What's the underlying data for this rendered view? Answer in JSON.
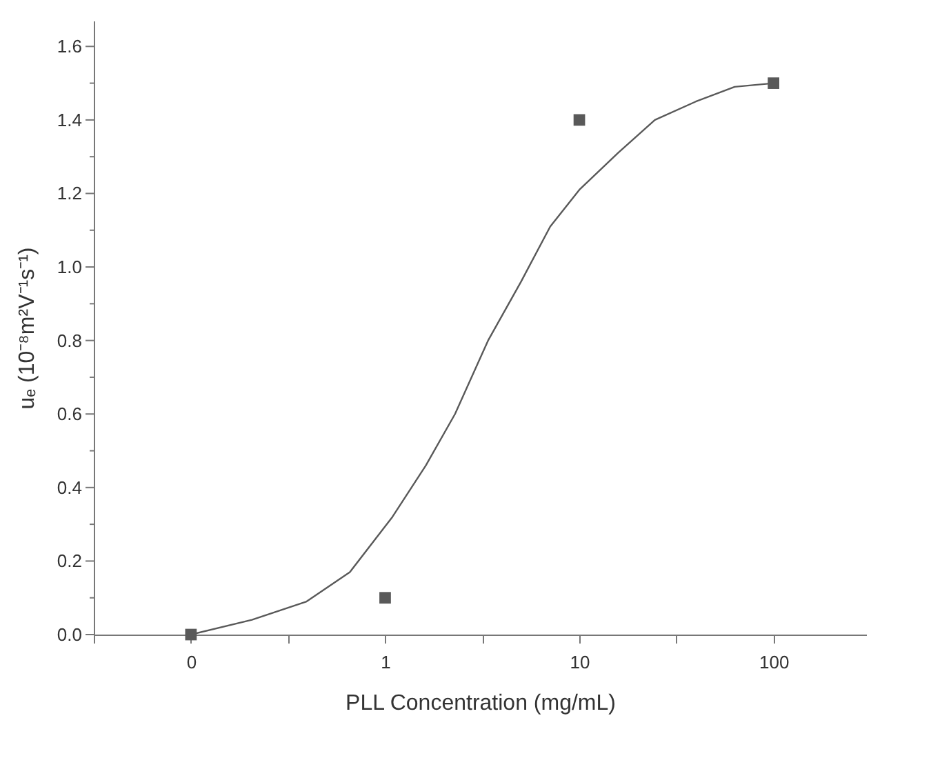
{
  "chart_data": {
    "type": "scatter",
    "xlabel": "PLL Concentration (mg/mL)",
    "ylabel": "uₑ (10⁻⁸m²V⁻¹s⁻¹)",
    "log": "x",
    "grid": false,
    "xlim": [
      0.0316,
      300
    ],
    "ylim": [
      0,
      1.67
    ],
    "xticks": [
      {
        "value": 0.0316,
        "label": null
      },
      {
        "value": 0.1,
        "label": "0"
      },
      {
        "value": 0.316,
        "label": null
      },
      1,
      {
        "value": 3.16,
        "label": null
      },
      10,
      {
        "value": 31.6,
        "label": null
      },
      100
    ],
    "yticks": [
      {
        "value": 0,
        "label": "0.0"
      },
      {
        "value": 0.1,
        "label": null
      },
      {
        "value": 0.2,
        "label": "0.2"
      },
      {
        "value": 0.3,
        "label": null
      },
      {
        "value": 0.4,
        "label": "0.4"
      },
      {
        "value": 0.5,
        "label": null
      },
      {
        "value": 0.6,
        "label": "0.6"
      },
      {
        "value": 0.7,
        "label": null
      },
      {
        "value": 0.8,
        "label": "0.8"
      },
      {
        "value": 0.9,
        "label": null
      },
      {
        "value": 1.0,
        "label": "1.0"
      },
      {
        "value": 1.1,
        "label": null
      },
      {
        "value": 1.2,
        "label": "1.2"
      },
      {
        "value": 1.3,
        "label": null
      },
      {
        "value": 1.4,
        "label": "1.4"
      },
      {
        "value": 1.5,
        "label": null
      },
      {
        "value": 1.6,
        "label": "1.6"
      }
    ],
    "series": [
      {
        "type": "line",
        "color": "#595959",
        "marker": "none",
        "line_style": "solid",
        "x": [
          0.1,
          0.206,
          0.394,
          0.658,
          1.09,
          1.62,
          2.29,
          3.39,
          5.01,
          7.08,
          10,
          15.8,
          24.5,
          39.8,
          63.1,
          100
        ],
        "values": [
          0,
          0.04,
          0.09,
          0.17,
          0.32,
          0.46,
          0.6,
          0.8,
          0.96,
          1.11,
          1.21,
          1.31,
          1.4,
          1.45,
          1.49,
          1.5
        ]
      },
      {
        "color": "#595959",
        "marker": "square",
        "x": [
          0.1,
          1,
          10,
          100
        ],
        "values": [
          0.0,
          0.1,
          1.4,
          1.5
        ]
      }
    ]
  }
}
